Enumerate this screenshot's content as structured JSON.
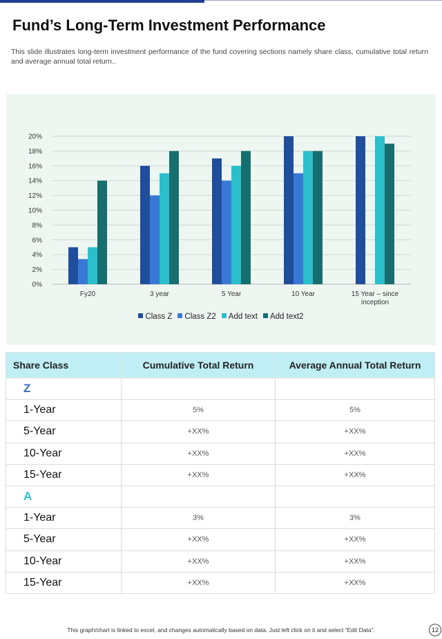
{
  "title": "Fund’s Long-Term Investment Performance",
  "subtitle": "This slide illustrates long-term investment performance of the fund covering sections namely share class, cumulative total return and average annual total return..",
  "colors": {
    "class_z": "#1f4e9c",
    "class_z2": "#3a78d6",
    "add_text": "#2bbfcc",
    "add_text2": "#166e6e",
    "chart_background": "#eef6f1",
    "table_header": "#bfeef4",
    "group_z": "#3a6fb5",
    "group_a": "#2bbfcc"
  },
  "chart_data": {
    "type": "bar",
    "categories": [
      "Fy20",
      "3 year",
      "5 Year",
      "10 Year",
      "15 Year – since inception"
    ],
    "category_lines": [
      [
        "Fy20"
      ],
      [
        "3 year"
      ],
      [
        "5 Year"
      ],
      [
        "10 Year"
      ],
      [
        "15 Year – since",
        "inception"
      ]
    ],
    "series": [
      {
        "name": "Class Z",
        "values": [
          5,
          16,
          17,
          20,
          20
        ]
      },
      {
        "name": "Class Z2",
        "values": [
          3.4,
          12,
          14,
          15,
          null
        ]
      },
      {
        "name": "Add text",
        "values": [
          5,
          15,
          16,
          18,
          20
        ]
      },
      {
        "name": "Add text2",
        "values": [
          14,
          18,
          18,
          18,
          19
        ]
      }
    ],
    "ylim": [
      0,
      20
    ],
    "yticks": [
      0,
      2,
      4,
      6,
      8,
      10,
      12,
      14,
      16,
      18,
      20
    ],
    "ytick_labels": [
      "0%",
      "2%",
      "4%",
      "6%",
      "8%",
      "10%",
      "12%",
      "14%",
      "16%",
      "18%",
      "20%"
    ],
    "grid": true,
    "legend_placement": "bottom"
  },
  "table": {
    "headers": [
      "Share Class",
      "Cumulative Total Return",
      "Average Annual Total Return"
    ],
    "groups": [
      {
        "name": "Z",
        "rows": [
          {
            "label": "1-Year",
            "cumulative": "5%",
            "annual": "5%"
          },
          {
            "label": "5-Year",
            "cumulative": "+XX%",
            "annual": "+XX%"
          },
          {
            "label": "10-Year",
            "cumulative": "+XX%",
            "annual": "+XX%"
          },
          {
            "label": "15-Year",
            "cumulative": "+XX%",
            "annual": "+XX%"
          }
        ]
      },
      {
        "name": "A",
        "rows": [
          {
            "label": "1-Year",
            "cumulative": "3%",
            "annual": "3%"
          },
          {
            "label": "5-Year",
            "cumulative": "+XX%",
            "annual": "+XX%"
          },
          {
            "label": "10-Year",
            "cumulative": "+XX%",
            "annual": "+XX%"
          },
          {
            "label": "15-Year",
            "cumulative": "+XX%",
            "annual": "+XX%"
          }
        ]
      }
    ]
  },
  "footer": "This graph/chart is linked to excel, and changes automatically based on data. Just left click on it and select “Edit Data”.",
  "page_number": "12"
}
